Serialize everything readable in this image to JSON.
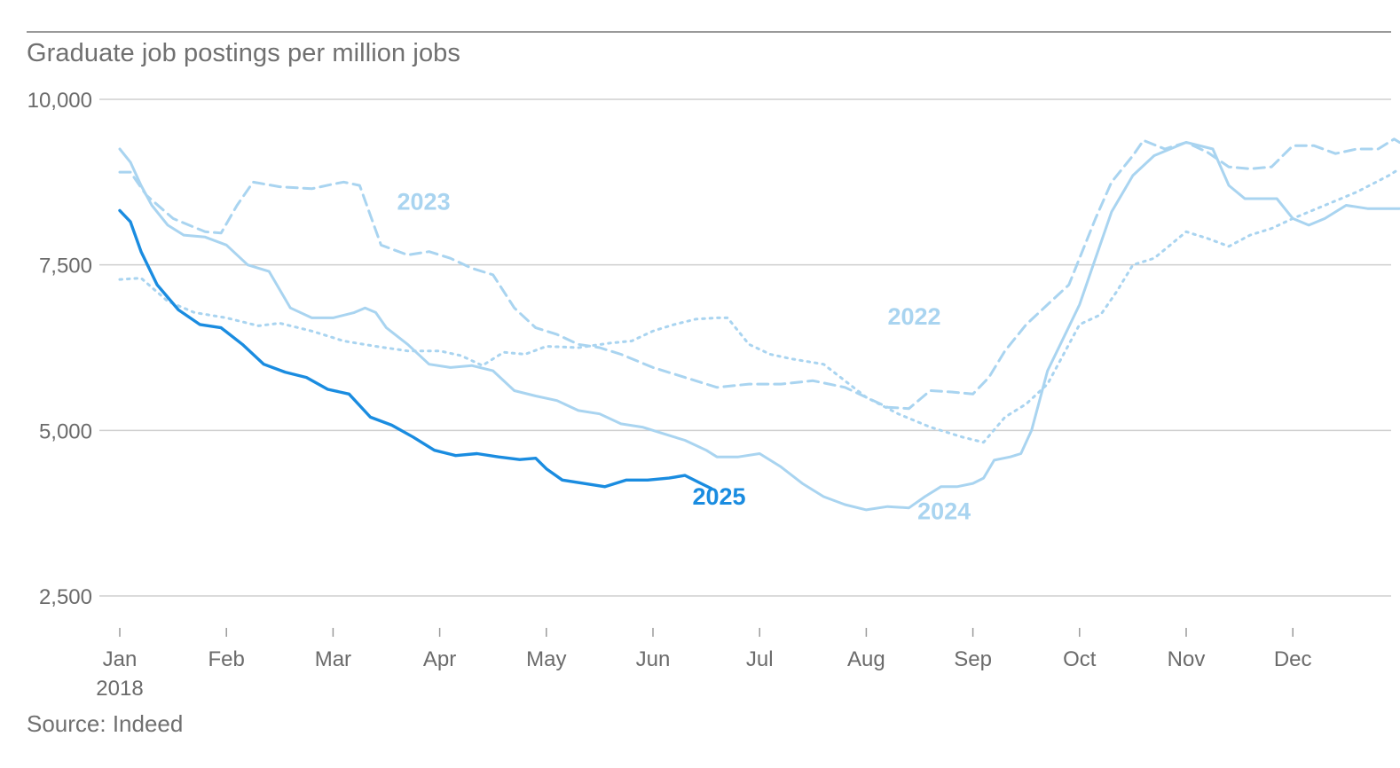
{
  "title": "Graduate job postings per million jobs",
  "source": "Source: Indeed",
  "chart_data": {
    "type": "line",
    "title": "Graduate job postings per million jobs",
    "ylim": [
      2500,
      10000
    ],
    "yticks": [
      2500,
      5000,
      7500,
      10000
    ],
    "ytick_labels": [
      "2,500",
      "5,000",
      "7,500",
      "10,000"
    ],
    "xlim": [
      1,
      13
    ],
    "xticks": [
      {
        "x": 1,
        "label": "Jan",
        "sub": "2018"
      },
      {
        "x": 2,
        "label": "Feb"
      },
      {
        "x": 3,
        "label": "Mar"
      },
      {
        "x": 4,
        "label": "Apr"
      },
      {
        "x": 5,
        "label": "May"
      },
      {
        "x": 6,
        "label": "Jun"
      },
      {
        "x": 7,
        "label": "Jul"
      },
      {
        "x": 8,
        "label": "Aug"
      },
      {
        "x": 9,
        "label": "Sep"
      },
      {
        "x": 10,
        "label": "Oct"
      },
      {
        "x": 11,
        "label": "Nov"
      },
      {
        "x": 12,
        "label": "Dec"
      }
    ],
    "grid": true,
    "series": [
      {
        "name": "2022",
        "style": "dotted",
        "color": "#a9d4f0",
        "label_at": [
          8.2,
          6600
        ],
        "points": [
          [
            1.0,
            7280
          ],
          [
            1.2,
            7300
          ],
          [
            1.45,
            6950
          ],
          [
            1.7,
            6780
          ],
          [
            2.0,
            6700
          ],
          [
            2.3,
            6580
          ],
          [
            2.5,
            6620
          ],
          [
            2.8,
            6500
          ],
          [
            3.1,
            6350
          ],
          [
            3.4,
            6270
          ],
          [
            3.7,
            6200
          ],
          [
            4.0,
            6200
          ],
          [
            4.2,
            6130
          ],
          [
            4.4,
            5980
          ],
          [
            4.6,
            6180
          ],
          [
            4.8,
            6150
          ],
          [
            5.0,
            6270
          ],
          [
            5.3,
            6250
          ],
          [
            5.6,
            6320
          ],
          [
            5.8,
            6350
          ],
          [
            6.0,
            6500
          ],
          [
            6.2,
            6600
          ],
          [
            6.4,
            6680
          ],
          [
            6.6,
            6700
          ],
          [
            6.7,
            6700
          ],
          [
            6.9,
            6300
          ],
          [
            7.1,
            6150
          ],
          [
            7.3,
            6080
          ],
          [
            7.6,
            6000
          ],
          [
            8.0,
            5500
          ],
          [
            8.3,
            5250
          ],
          [
            8.6,
            5050
          ],
          [
            8.9,
            4900
          ],
          [
            9.1,
            4820
          ],
          [
            9.3,
            5200
          ],
          [
            9.5,
            5400
          ],
          [
            9.7,
            5700
          ],
          [
            9.9,
            6300
          ],
          [
            10.0,
            6600
          ],
          [
            10.2,
            6750
          ],
          [
            10.35,
            7100
          ],
          [
            10.5,
            7500
          ],
          [
            10.7,
            7600
          ],
          [
            10.85,
            7800
          ],
          [
            11.0,
            8000
          ],
          [
            11.2,
            7900
          ],
          [
            11.4,
            7780
          ],
          [
            11.6,
            7950
          ],
          [
            11.8,
            8050
          ],
          [
            12.0,
            8200
          ],
          [
            12.3,
            8400
          ],
          [
            12.6,
            8600
          ],
          [
            12.9,
            8850
          ],
          [
            13.0,
            8950
          ]
        ]
      },
      {
        "name": "2023",
        "style": "dashed",
        "color": "#a9d4f0",
        "label_at": [
          3.6,
          8330
        ],
        "points": [
          [
            1.0,
            8900
          ],
          [
            1.1,
            8900
          ],
          [
            1.25,
            8550
          ],
          [
            1.5,
            8200
          ],
          [
            1.8,
            8000
          ],
          [
            1.95,
            7980
          ],
          [
            2.1,
            8400
          ],
          [
            2.25,
            8750
          ],
          [
            2.5,
            8680
          ],
          [
            2.8,
            8650
          ],
          [
            3.0,
            8720
          ],
          [
            3.1,
            8750
          ],
          [
            3.25,
            8700
          ],
          [
            3.45,
            7800
          ],
          [
            3.7,
            7650
          ],
          [
            3.9,
            7700
          ],
          [
            4.1,
            7600
          ],
          [
            4.3,
            7450
          ],
          [
            4.5,
            7350
          ],
          [
            4.7,
            6850
          ],
          [
            4.9,
            6550
          ],
          [
            5.1,
            6450
          ],
          [
            5.3,
            6300
          ],
          [
            5.5,
            6250
          ],
          [
            5.7,
            6150
          ],
          [
            6.0,
            5950
          ],
          [
            6.3,
            5800
          ],
          [
            6.6,
            5650
          ],
          [
            6.9,
            5700
          ],
          [
            7.2,
            5700
          ],
          [
            7.5,
            5750
          ],
          [
            7.8,
            5650
          ],
          [
            8.0,
            5500
          ],
          [
            8.2,
            5350
          ],
          [
            8.4,
            5330
          ],
          [
            8.6,
            5600
          ],
          [
            8.8,
            5580
          ],
          [
            9.0,
            5550
          ],
          [
            9.15,
            5800
          ],
          [
            9.3,
            6200
          ],
          [
            9.5,
            6600
          ],
          [
            9.7,
            6900
          ],
          [
            9.9,
            7200
          ],
          [
            10.0,
            7600
          ],
          [
            10.15,
            8200
          ],
          [
            10.3,
            8750
          ],
          [
            10.5,
            9150
          ],
          [
            10.6,
            9380
          ],
          [
            10.8,
            9250
          ],
          [
            11.0,
            9350
          ],
          [
            11.2,
            9200
          ],
          [
            11.4,
            8980
          ],
          [
            11.6,
            8950
          ],
          [
            11.8,
            8980
          ],
          [
            12.0,
            9300
          ],
          [
            12.2,
            9300
          ],
          [
            12.4,
            9180
          ],
          [
            12.6,
            9250
          ],
          [
            12.8,
            9250
          ],
          [
            12.95,
            9400
          ],
          [
            13.0,
            9350
          ]
        ]
      },
      {
        "name": "2024",
        "style": "solid",
        "color": "#a9d4f0",
        "label_at": [
          8.48,
          3660
        ],
        "points": [
          [
            1.0,
            9250
          ],
          [
            1.1,
            9050
          ],
          [
            1.2,
            8700
          ],
          [
            1.3,
            8400
          ],
          [
            1.45,
            8100
          ],
          [
            1.6,
            7950
          ],
          [
            1.8,
            7920
          ],
          [
            2.0,
            7800
          ],
          [
            2.2,
            7500
          ],
          [
            2.4,
            7400
          ],
          [
            2.6,
            6850
          ],
          [
            2.8,
            6700
          ],
          [
            3.0,
            6700
          ],
          [
            3.2,
            6780
          ],
          [
            3.3,
            6850
          ],
          [
            3.4,
            6780
          ],
          [
            3.5,
            6550
          ],
          [
            3.7,
            6300
          ],
          [
            3.9,
            6000
          ],
          [
            4.1,
            5950
          ],
          [
            4.3,
            5980
          ],
          [
            4.5,
            5900
          ],
          [
            4.7,
            5600
          ],
          [
            4.9,
            5520
          ],
          [
            5.1,
            5450
          ],
          [
            5.3,
            5300
          ],
          [
            5.5,
            5250
          ],
          [
            5.7,
            5100
          ],
          [
            5.9,
            5050
          ],
          [
            6.1,
            4950
          ],
          [
            6.3,
            4850
          ],
          [
            6.5,
            4700
          ],
          [
            6.6,
            4600
          ],
          [
            6.8,
            4600
          ],
          [
            7.0,
            4650
          ],
          [
            7.2,
            4450
          ],
          [
            7.4,
            4200
          ],
          [
            7.6,
            4000
          ],
          [
            7.8,
            3880
          ],
          [
            8.0,
            3800
          ],
          [
            8.2,
            3850
          ],
          [
            8.4,
            3830
          ],
          [
            8.55,
            4000
          ],
          [
            8.7,
            4150
          ],
          [
            8.85,
            4150
          ],
          [
            9.0,
            4200
          ],
          [
            9.1,
            4280
          ],
          [
            9.2,
            4550
          ],
          [
            9.35,
            4600
          ],
          [
            9.45,
            4650
          ],
          [
            9.55,
            5000
          ],
          [
            9.7,
            5900
          ],
          [
            9.85,
            6400
          ],
          [
            10.0,
            6900
          ],
          [
            10.15,
            7600
          ],
          [
            10.3,
            8300
          ],
          [
            10.5,
            8850
          ],
          [
            10.7,
            9150
          ],
          [
            11.0,
            9350
          ],
          [
            11.25,
            9250
          ],
          [
            11.4,
            8700
          ],
          [
            11.55,
            8500
          ],
          [
            11.7,
            8500
          ],
          [
            11.85,
            8500
          ],
          [
            12.0,
            8200
          ],
          [
            12.15,
            8100
          ],
          [
            12.3,
            8200
          ],
          [
            12.5,
            8400
          ],
          [
            12.7,
            8350
          ],
          [
            12.85,
            8350
          ],
          [
            13.0,
            8350
          ]
        ]
      },
      {
        "name": "2025",
        "style": "solid",
        "color": "#1a8ce0",
        "label_at": [
          6.37,
          3880
        ],
        "points": [
          [
            1.0,
            8320
          ],
          [
            1.1,
            8150
          ],
          [
            1.2,
            7700
          ],
          [
            1.35,
            7200
          ],
          [
            1.55,
            6820
          ],
          [
            1.75,
            6600
          ],
          [
            1.95,
            6550
          ],
          [
            2.15,
            6300
          ],
          [
            2.35,
            6000
          ],
          [
            2.55,
            5880
          ],
          [
            2.75,
            5800
          ],
          [
            2.95,
            5620
          ],
          [
            3.15,
            5550
          ],
          [
            3.35,
            5200
          ],
          [
            3.55,
            5080
          ],
          [
            3.75,
            4900
          ],
          [
            3.95,
            4700
          ],
          [
            4.15,
            4620
          ],
          [
            4.35,
            4650
          ],
          [
            4.55,
            4600
          ],
          [
            4.75,
            4560
          ],
          [
            4.9,
            4580
          ],
          [
            5.0,
            4420
          ],
          [
            5.15,
            4250
          ],
          [
            5.35,
            4200
          ],
          [
            5.55,
            4150
          ],
          [
            5.75,
            4250
          ],
          [
            5.95,
            4250
          ],
          [
            6.15,
            4280
          ],
          [
            6.3,
            4320
          ],
          [
            6.45,
            4200
          ],
          [
            6.55,
            4120
          ]
        ]
      }
    ]
  }
}
